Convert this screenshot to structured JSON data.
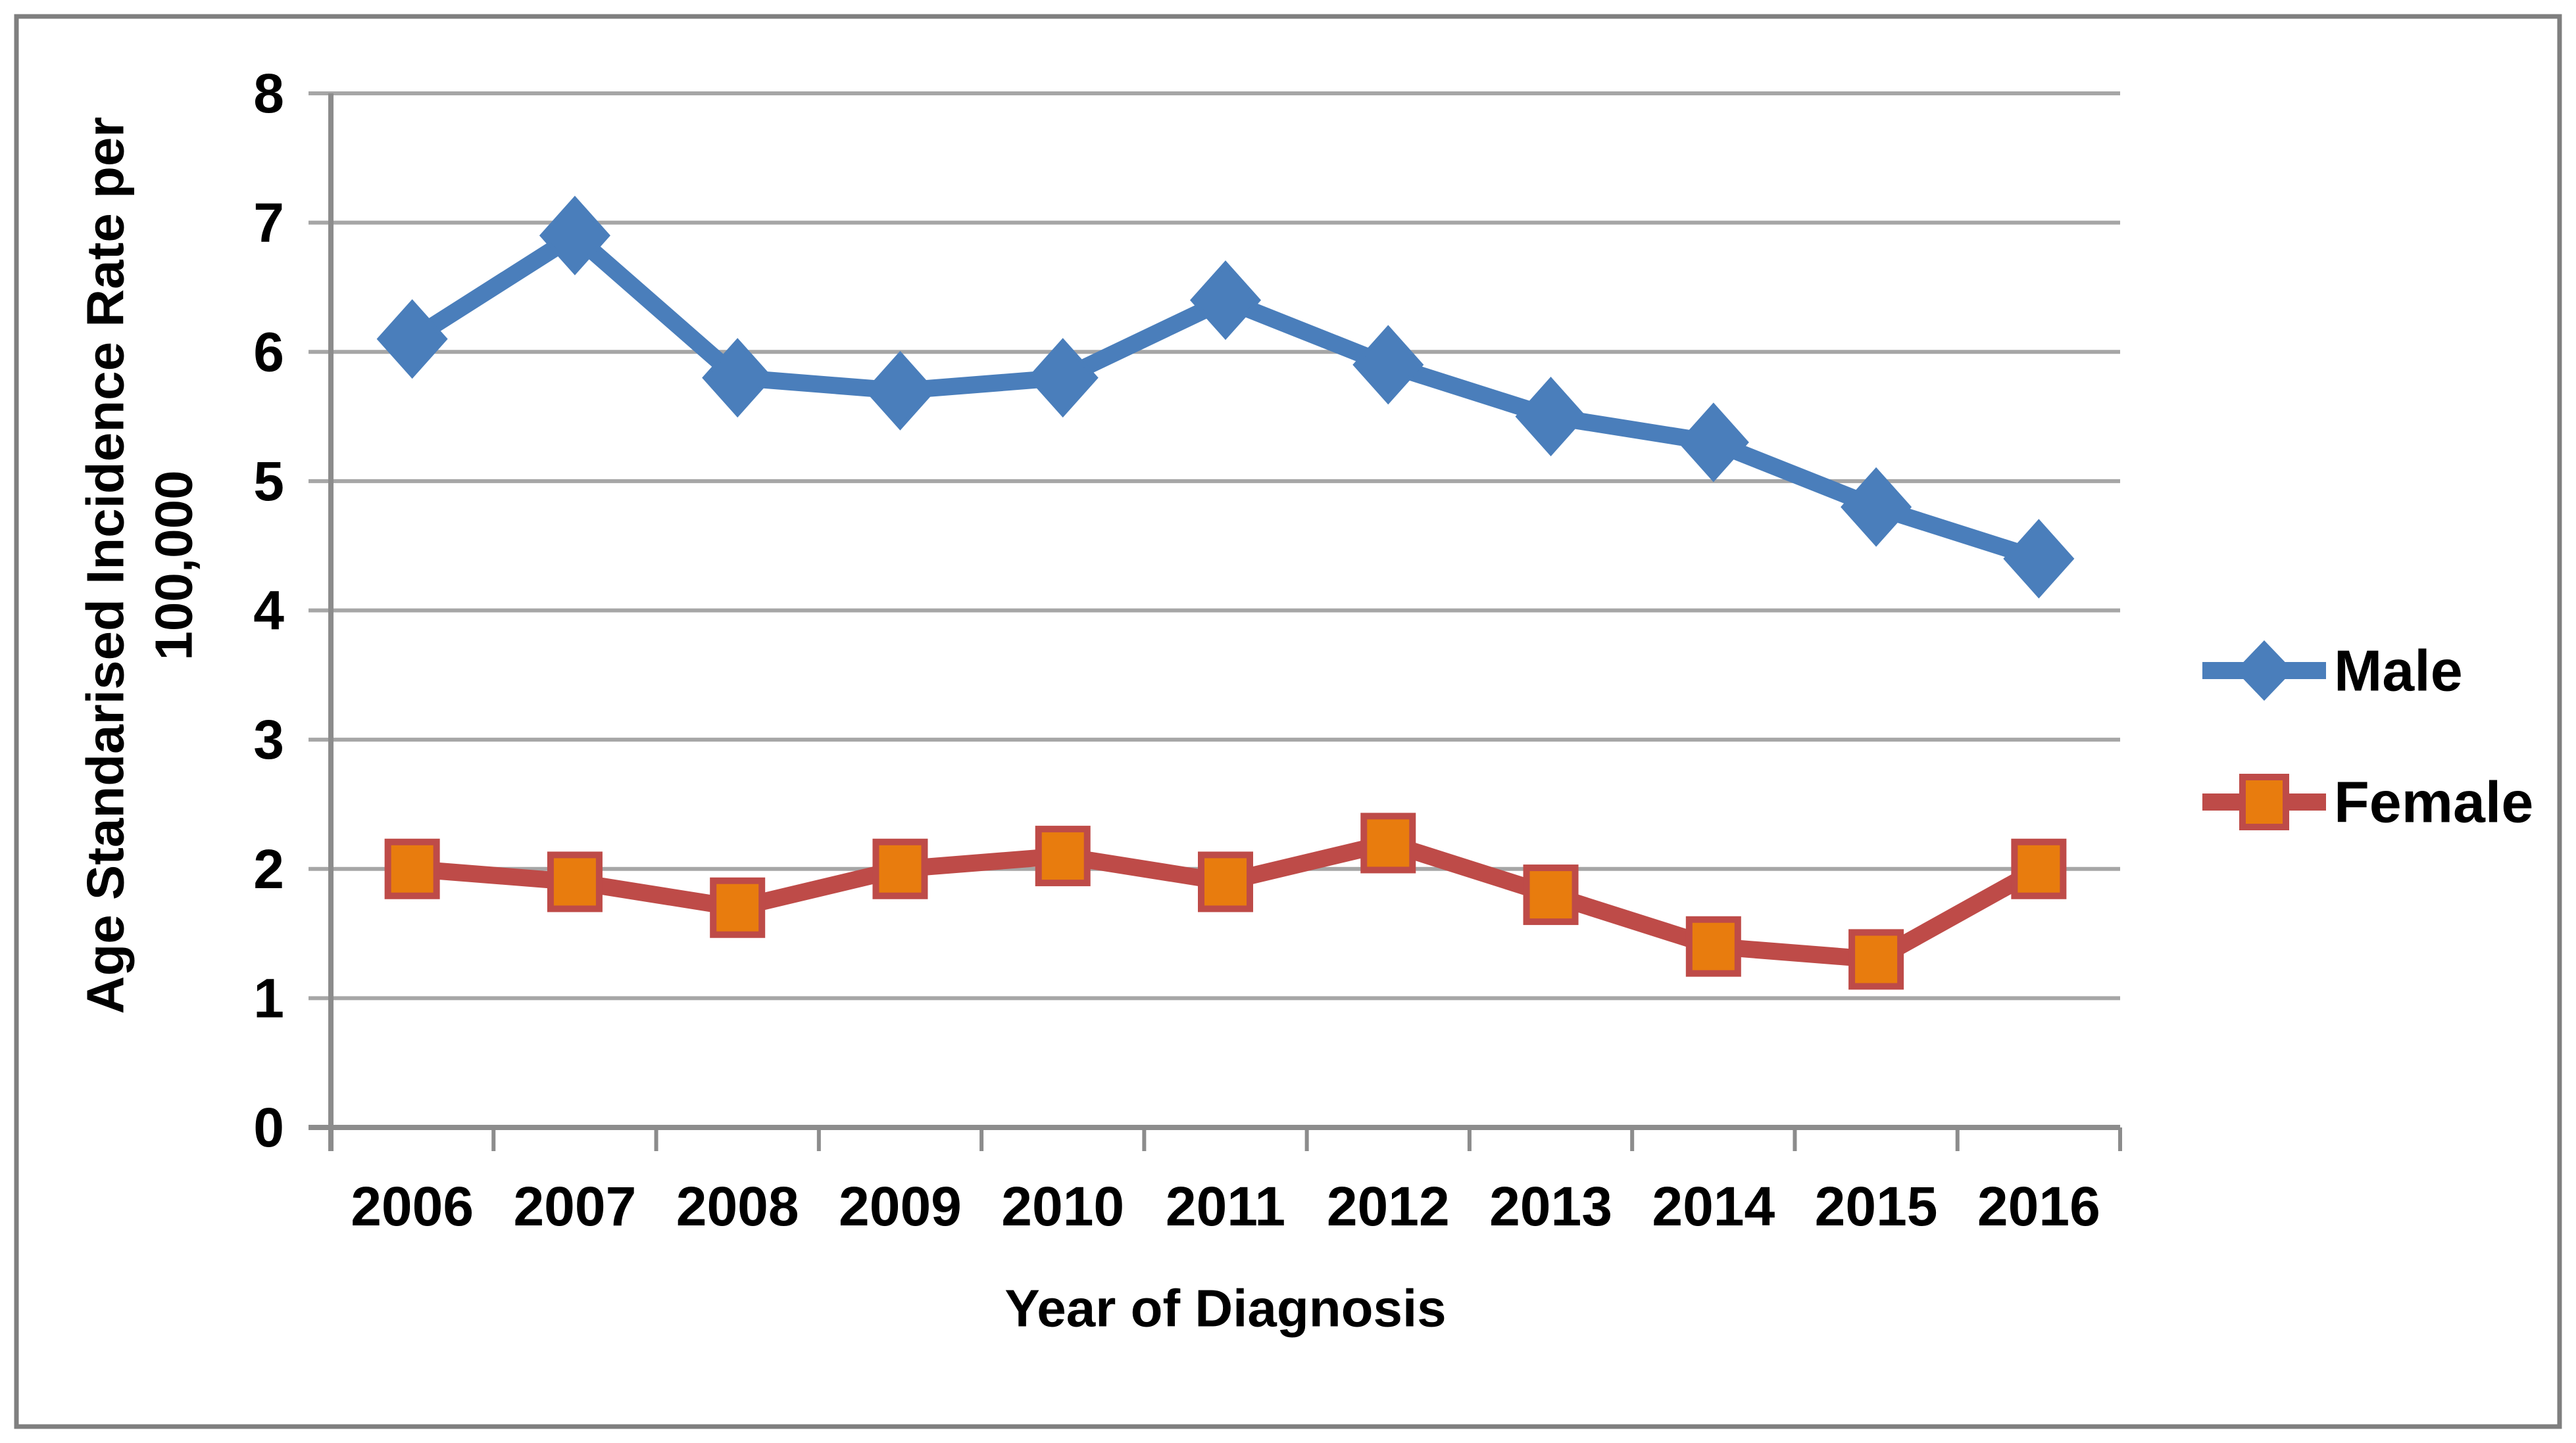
{
  "chart_data": {
    "type": "line",
    "title": "",
    "categories": [
      "2006",
      "2007",
      "2008",
      "2009",
      "2010",
      "2011",
      "2012",
      "2013",
      "2014",
      "2015",
      "2016"
    ],
    "series": [
      {
        "name": "Male",
        "marker": "diamond",
        "line_color": "#4A7EBB",
        "marker_fill": "#4A7EBB",
        "marker_border": "#4A7EBB",
        "values": [
          6.1,
          6.9,
          5.8,
          5.7,
          5.8,
          6.4,
          5.9,
          5.5,
          5.3,
          4.8,
          4.4
        ]
      },
      {
        "name": "Female",
        "marker": "square",
        "line_color": "#BE4B48",
        "marker_fill": "#E87C0E",
        "marker_border": "#BE4B48",
        "values": [
          2.0,
          1.9,
          1.7,
          2.0,
          2.1,
          1.9,
          2.2,
          1.8,
          1.4,
          1.3,
          2.0
        ]
      }
    ],
    "xlabel": "Year of Diagnosis",
    "ylabel_line1": "Age Standarised Incidence Rate per",
    "ylabel_line2": "100,000",
    "ylim": [
      0,
      8
    ],
    "yticks": [
      0,
      1,
      2,
      3,
      4,
      5,
      6,
      7,
      8
    ],
    "grid": "horizontal",
    "legend_position": "right",
    "colors": {
      "gridline": "#A6A6A6",
      "axis": "#8C8C8C",
      "frame_border": "#7F7F7F",
      "tick_label": "#000000",
      "background": "#FFFFFF"
    }
  }
}
